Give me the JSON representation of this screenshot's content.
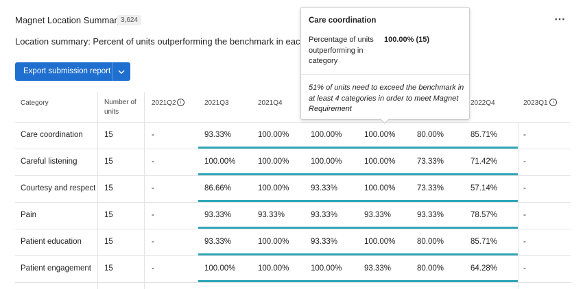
{
  "header": {
    "title": "Magnet Location Summary",
    "badge": "3,624"
  },
  "subtitle": "Location summary: Percent of units outperforming the benchmark in each category",
  "button": {
    "label": "Export submission report"
  },
  "table": {
    "columns": [
      "Category",
      "Number of units",
      "2021Q2",
      "2021Q3",
      "2021Q4",
      null,
      null,
      null,
      "2022Q4",
      "2023Q1"
    ],
    "rows": [
      [
        "Care coordination",
        "15",
        "-",
        "93.33%",
        "100.00%",
        "100.00%",
        "100.00%",
        "80.00%",
        "85.71%",
        "-"
      ],
      [
        "Careful listening",
        "15",
        "-",
        "100.00%",
        "100.00%",
        "100.00%",
        "100.00%",
        "73.33%",
        "71.42%",
        "-"
      ],
      [
        "Courtesy and respect",
        "15",
        "-",
        "86.66%",
        "100.00%",
        "93.33%",
        "100.00%",
        "73.33%",
        "57.14%",
        "-"
      ],
      [
        "Pain",
        "15",
        "-",
        "93.33%",
        "93.33%",
        "93.33%",
        "93.33%",
        "93.33%",
        "78.57%",
        "-"
      ],
      [
        "Patient education",
        "15",
        "-",
        "93.33%",
        "100.00%",
        "93.33%",
        "100.00%",
        "80.00%",
        "85.71%",
        "-"
      ],
      [
        "Patient engagement",
        "15",
        "-",
        "100.00%",
        "100.00%",
        "100.00%",
        "93.33%",
        "80.00%",
        "64.28%",
        "-"
      ]
    ]
  },
  "tooltip": {
    "title": "Care coordination",
    "label": "Percentage of units outperforming in category",
    "value": "100.00% (15)",
    "note": "51% of units need to exceed the benchmark in at least 4 categories in order to meet Magnet Requirement"
  }
}
